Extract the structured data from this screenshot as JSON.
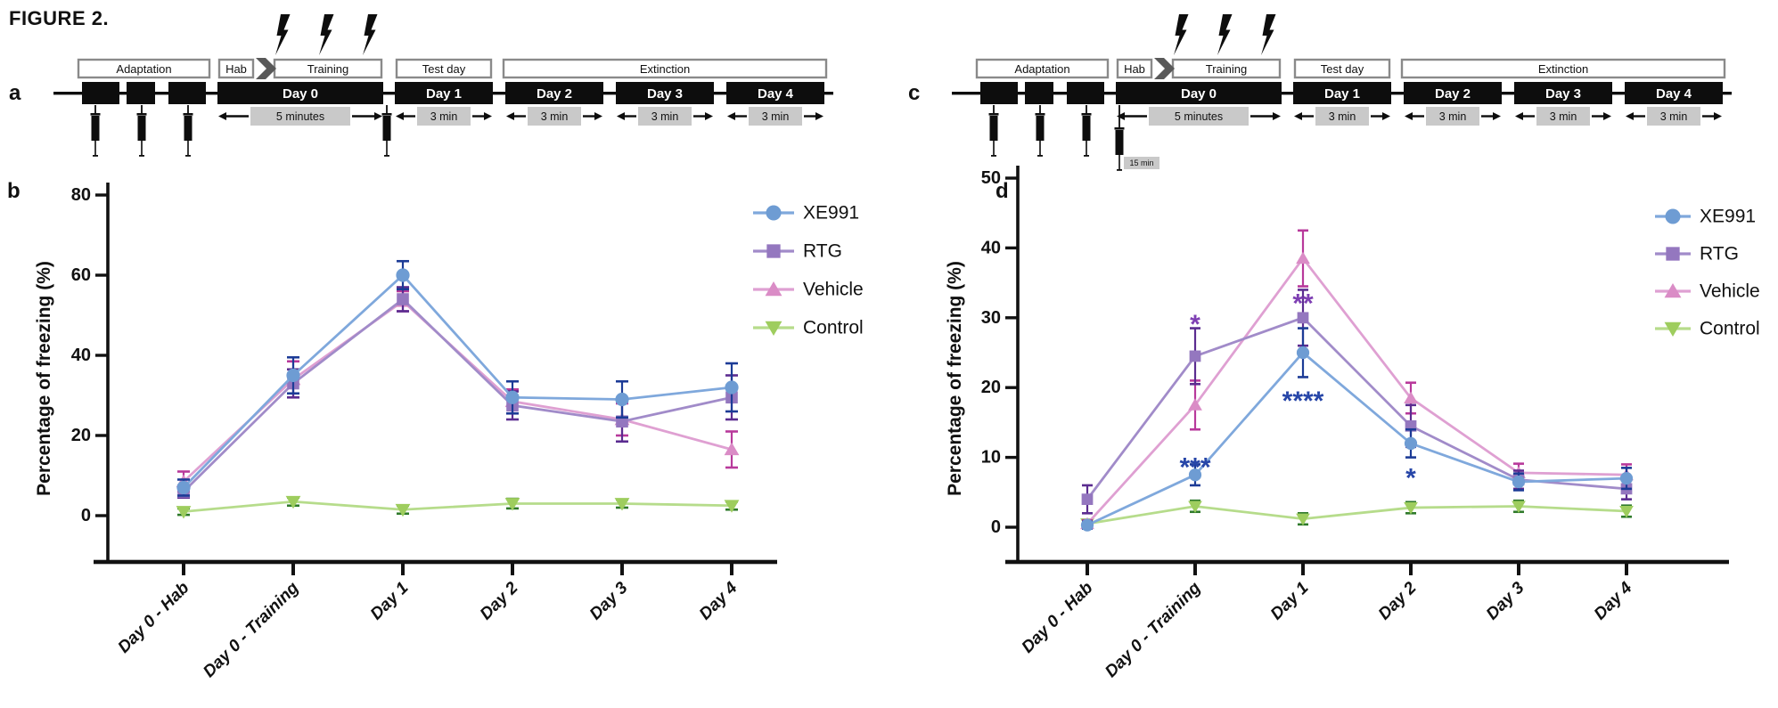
{
  "figure": {
    "title": "FIGURE 2."
  },
  "colors": {
    "axis": "#111111",
    "bar_black": "#0d0d0d",
    "gray_box": "#c9c9c9",
    "phase_border": "#8a8a8a",
    "chevron": "#595959",
    "series": {
      "XE991": {
        "line": "#7fa8dc",
        "marker": "#6e9cd3",
        "error": "#1c3b96",
        "star": "#2746a8"
      },
      "RTG": {
        "line": "#a18bc9",
        "marker": "#9477bf",
        "error": "#5b2c90",
        "star": "#7e3fb3"
      },
      "Vehicle": {
        "line": "#dfa0d2",
        "marker": "#da8cc6",
        "error": "#b8399b",
        "star": "#b03ea0"
      },
      "Control": {
        "line": "#b6dc8b",
        "marker": "#9ecd5e",
        "error": "#2f7a2a",
        "star": "#2f7a2a"
      }
    }
  },
  "timelines": [
    {
      "id": "a",
      "panel_letter": "a",
      "phases": {
        "adaptation": "Adaptation",
        "hab": "Hab",
        "training": "Training",
        "test_day": "Test day",
        "extinction": "Extinction"
      },
      "days": [
        "Day 0",
        "Day 1",
        "Day 2",
        "Day 3",
        "Day 4"
      ],
      "durations": [
        "5 minutes",
        "3 min",
        "3 min",
        "3 min",
        "3 min"
      ],
      "lightning_bolts": 3,
      "injections": {
        "adaptation_count": 3,
        "extra_position": "after_day0",
        "extra_note": null
      }
    },
    {
      "id": "c",
      "panel_letter": "c",
      "phases": {
        "adaptation": "Adaptation",
        "hab": "Hab",
        "training": "Training",
        "test_day": "Test day",
        "extinction": "Extinction"
      },
      "days": [
        "Day 0",
        "Day 1",
        "Day 2",
        "Day 3",
        "Day 4"
      ],
      "durations": [
        "5 minutes",
        "3 min",
        "3 min",
        "3 min",
        "3 min"
      ],
      "lightning_bolts": 3,
      "injections": {
        "adaptation_count": 3,
        "extra_position": "start_day0",
        "extra_note": "15 min"
      }
    }
  ],
  "chart_data": [
    {
      "id": "b",
      "panel_letter": "b",
      "type": "line",
      "title": "",
      "xlabel": "",
      "ylabel": "Percentage of freezing (%)",
      "ylim": [
        0,
        80
      ],
      "yticks": [
        0,
        20,
        40,
        60,
        80
      ],
      "grid": false,
      "legend_position": "right",
      "categories": [
        "Day 0 - Hab",
        "Day 0 - Training",
        "Day 1",
        "Day 2",
        "Day 3",
        "Day 4"
      ],
      "series": [
        {
          "name": "XE991",
          "marker": "circle",
          "values": [
            7,
            35,
            60,
            29.5,
            29,
            32
          ],
          "errors": [
            2,
            4.5,
            3.5,
            4,
            4.5,
            6
          ]
        },
        {
          "name": "RTG",
          "marker": "square",
          "values": [
            6,
            33,
            54,
            27.5,
            23.5,
            29.5
          ],
          "errors": [
            1.5,
            3.5,
            3,
            3.5,
            5,
            5.5
          ]
        },
        {
          "name": "Vehicle",
          "marker": "triangle-up",
          "values": [
            8.5,
            34,
            53.5,
            28.5,
            24,
            16.5
          ],
          "errors": [
            2.5,
            4.5,
            2.5,
            3,
            4,
            4.5
          ]
        },
        {
          "name": "Control",
          "marker": "triangle-down",
          "values": [
            1,
            3.5,
            1.5,
            3,
            3,
            2.5
          ],
          "errors": [
            0.8,
            1,
            1,
            1.2,
            1,
            1
          ]
        }
      ],
      "annotations": []
    },
    {
      "id": "d",
      "panel_letter": "d",
      "type": "line",
      "title": "",
      "xlabel": "",
      "ylabel": "Percentage of freezing (%)",
      "ylim": [
        0,
        50
      ],
      "yticks": [
        0,
        10,
        20,
        30,
        40,
        50
      ],
      "grid": false,
      "legend_position": "right",
      "categories": [
        "Day 0 - Hab",
        "Day 0 - Training",
        "Day 1",
        "Day 2",
        "Day 3",
        "Day 4"
      ],
      "series": [
        {
          "name": "XE991",
          "marker": "circle",
          "values": [
            0.3,
            7.5,
            25,
            12,
            6.5,
            7
          ],
          "errors": [
            0.5,
            1.5,
            3.5,
            2,
            1.2,
            1.5
          ]
        },
        {
          "name": "RTG",
          "marker": "square",
          "values": [
            4,
            24.5,
            30,
            14.5,
            6.8,
            5.5
          ],
          "errors": [
            2,
            4,
            4,
            3,
            1.3,
            1.5
          ]
        },
        {
          "name": "Vehicle",
          "marker": "triangle-up",
          "values": [
            0.5,
            17.5,
            38.5,
            18.5,
            7.8,
            7.5
          ],
          "errors": [
            0.5,
            3.5,
            4,
            2.2,
            1.3,
            1.5
          ]
        },
        {
          "name": "Control",
          "marker": "triangle-down",
          "values": [
            0.5,
            3,
            1.2,
            2.8,
            3,
            2.3
          ],
          "errors": [
            0.5,
            0.8,
            0.8,
            0.8,
            0.8,
            0.8
          ]
        }
      ],
      "annotations": [
        {
          "category_index": 1,
          "series": "RTG",
          "text": "*",
          "at_value": 30
        },
        {
          "category_index": 1,
          "series": "XE991",
          "text": "***",
          "at_value": 9.5
        },
        {
          "category_index": 2,
          "series": "RTG",
          "text": "**",
          "at_value": 33
        },
        {
          "category_index": 2,
          "series": "XE991",
          "text": "****",
          "at_value": 19
        },
        {
          "category_index": 3,
          "series": "XE991",
          "text": "*",
          "at_value": 8
        }
      ]
    }
  ]
}
